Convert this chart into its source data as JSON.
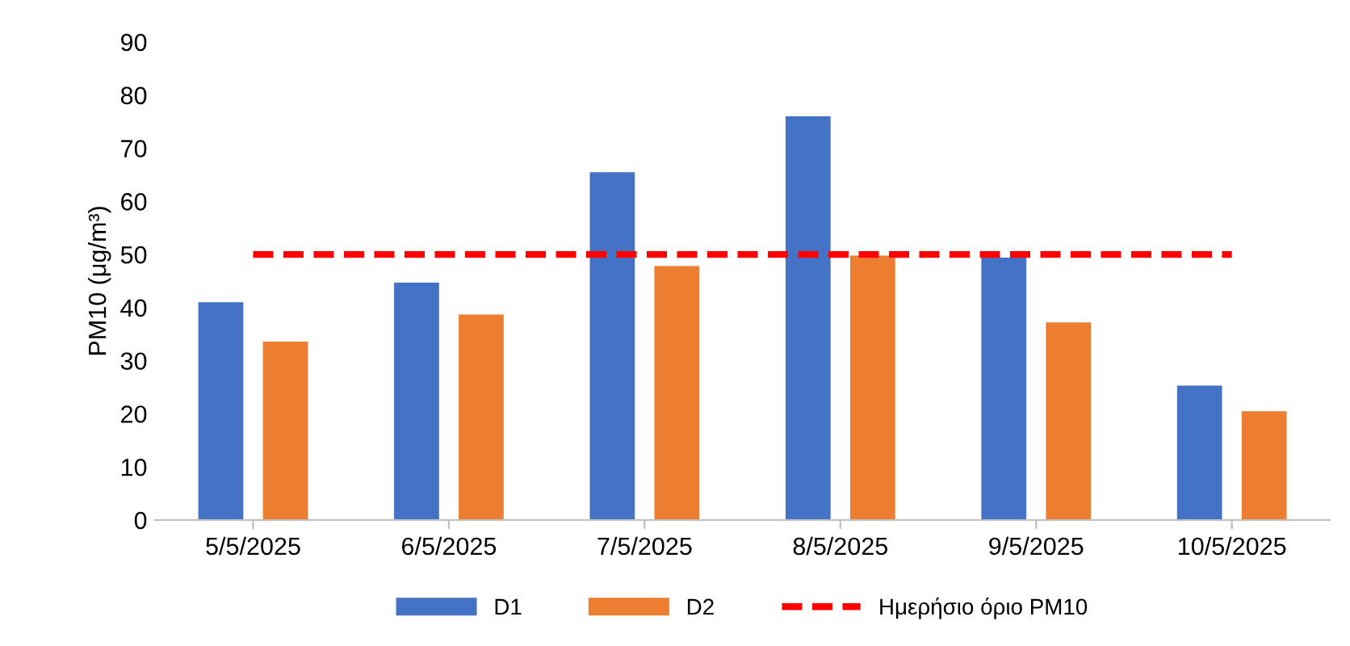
{
  "chart_data": {
    "type": "bar",
    "ylabel": "PM10 (μg/m³)",
    "categories": [
      "5/5/2025",
      "6/5/2025",
      "7/5/2025",
      "8/5/2025",
      "9/5/2025",
      "10/5/2025"
    ],
    "series": [
      {
        "name": "D1",
        "color": "#4472c4",
        "values": [
          41,
          44.7,
          65.5,
          76,
          49.4,
          25.3
        ]
      },
      {
        "name": "D2",
        "color": "#ed7d31",
        "values": [
          33.6,
          38.7,
          47.8,
          49.8,
          37.2,
          20.5
        ]
      },
      {
        "name": "Ημερήσιο όριο PM10",
        "color": "#ff0000",
        "type": "line",
        "line_style": "dashed",
        "values": [
          50,
          50,
          50,
          50,
          50,
          50
        ]
      }
    ],
    "ylim": [
      0,
      90
    ],
    "yticks": [
      0,
      10,
      20,
      30,
      40,
      50,
      60,
      70,
      80,
      90
    ],
    "grid": false,
    "legend": "bottom"
  }
}
